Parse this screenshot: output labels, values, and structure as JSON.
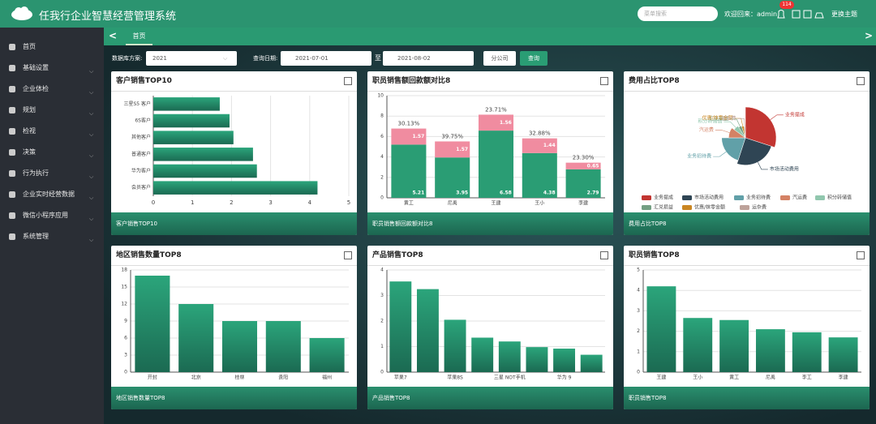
{
  "header": {
    "title": "任我行企业智慧经营管理系统",
    "search_placeholder": "菜单搜索",
    "welcome": "欢迎回来：admin",
    "badge": "114",
    "theme": "更换主题"
  },
  "sidebar": [
    "首页",
    "基础设置",
    "企业体检",
    "规划",
    "检视",
    "决策",
    "行为执行",
    "企业实时经营数据",
    "微信小程序应用",
    "系统管理"
  ],
  "tabs": [
    "首页"
  ],
  "filters": {
    "scheme_label": "数据库方案:",
    "scheme": "2021",
    "date_label": "查询日期:",
    "start": "2021-07-01",
    "to": "至",
    "end": "2021-08-02",
    "branch": "分公司",
    "query": "查询"
  },
  "chart_data": [
    {
      "type": "hbar",
      "title": "客户销售TOP10",
      "categories": [
        "三星S5 客户",
        "6S客户",
        "其他客户",
        "普通客户",
        "华为客户",
        "会员客户"
      ],
      "values": [
        1.7,
        1.95,
        2.05,
        2.55,
        2.65,
        4.2
      ],
      "color": "#2a9d74",
      "xlim": [
        0,
        5
      ],
      "xticks": [
        0,
        1,
        2,
        3,
        4,
        5
      ],
      "grid": true
    },
    {
      "type": "stacked",
      "title": "职员销售额回款额对比8",
      "categories": [
        "黄工",
        "尼禹",
        "王建",
        "王小",
        "李建"
      ],
      "series": [
        {
          "color": "#2a9d74",
          "values": [
            5.21,
            3.95,
            6.58,
            4.38,
            2.79
          ]
        },
        {
          "color": "#f08ca0",
          "values": [
            1.57,
            1.57,
            1.56,
            1.44,
            0.65
          ]
        }
      ],
      "annotations": [
        "30.13%",
        "39.75%",
        "23.71%",
        "32.88%",
        "23.30%"
      ],
      "ylim": [
        0,
        10
      ],
      "yticks": [
        0,
        2,
        4,
        6,
        8,
        10
      ],
      "grid": true
    },
    {
      "type": "pie",
      "title": "费用占比TOP8",
      "categories": [
        "业务提成",
        "市场活动费用",
        "业务招待费",
        "汽运费",
        "积分转储值",
        "汇兑损益",
        "优惠/抹零金额",
        "运杂费"
      ],
      "values": [
        30,
        25,
        20,
        10,
        6,
        4,
        3,
        2
      ],
      "colors": [
        "#c23531",
        "#2f4554",
        "#61a0a8",
        "#d48265",
        "#91c7ae",
        "#749f83",
        "#ca8622",
        "#bda29a"
      ]
    },
    {
      "type": "bar",
      "title": "地区销售数量TOP8",
      "categories": [
        "开封",
        "北京",
        "桂林",
        "贵阳",
        "福州"
      ],
      "values": [
        17,
        12,
        9,
        9,
        6
      ],
      "color": "#2a9d74",
      "ylim": [
        0,
        18
      ],
      "yticks": [
        0,
        3,
        6,
        9,
        12,
        15,
        18
      ],
      "grid": true
    },
    {
      "type": "bar",
      "title": "产品销售TOP8",
      "categories": [
        "苹果7",
        null,
        "苹果8S",
        null,
        "三星 NOT手机",
        null,
        "华为 9",
        null
      ],
      "values": [
        3.55,
        3.25,
        2.05,
        1.35,
        1.2,
        0.98,
        0.92,
        0.68
      ],
      "color": "#2a9d74",
      "ylim": [
        0,
        4
      ],
      "yticks": [
        0,
        1,
        2,
        3,
        4
      ],
      "grid": true
    },
    {
      "type": "bar",
      "title": "职员销售TOP8",
      "categories": [
        "王建",
        "王小",
        "黄工",
        "尼禹",
        "李工",
        "李建"
      ],
      "values": [
        4.2,
        2.65,
        2.55,
        2.1,
        1.95,
        1.7
      ],
      "color": "#2a9d74",
      "ylim": [
        0,
        5
      ],
      "yticks": [
        0,
        1,
        2,
        3,
        4,
        5
      ],
      "grid": true
    }
  ]
}
